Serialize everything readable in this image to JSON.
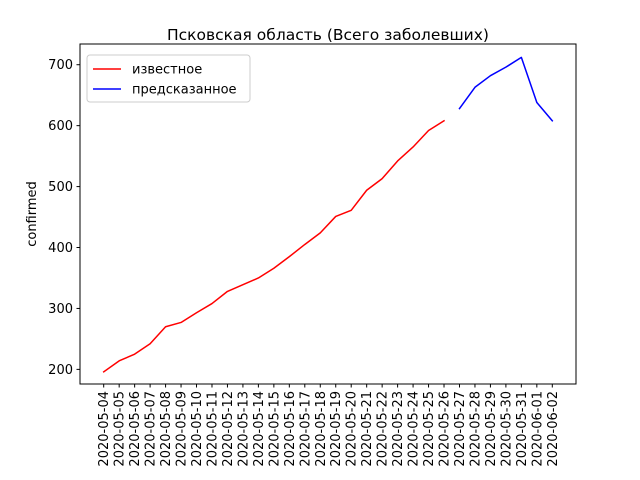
{
  "chart_data": {
    "type": "line",
    "title": "Псковская область (Всего заболевших)",
    "xlabel": "",
    "ylabel": "confirmed",
    "categories": [
      "2020-05-04",
      "2020-05-05",
      "2020-05-06",
      "2020-05-07",
      "2020-05-08",
      "2020-05-09",
      "2020-05-10",
      "2020-05-11",
      "2020-05-12",
      "2020-05-13",
      "2020-05-14",
      "2020-05-15",
      "2020-05-16",
      "2020-05-17",
      "2020-05-18",
      "2020-05-19",
      "2020-05-20",
      "2020-05-21",
      "2020-05-22",
      "2020-05-23",
      "2020-05-24",
      "2020-05-25",
      "2020-05-26",
      "2020-05-27",
      "2020-05-28",
      "2020-05-29",
      "2020-05-30",
      "2020-05-31",
      "2020-06-01",
      "2020-06-02"
    ],
    "ylim": [
      176,
      734
    ],
    "yticks": [
      200,
      300,
      400,
      500,
      600,
      700
    ],
    "grid": false,
    "legend_position": "top-left",
    "series": [
      {
        "name": "известное",
        "color": "#ff0000",
        "points": [
          {
            "x": "2020-05-04",
            "y": 196
          },
          {
            "x": "2020-05-05",
            "y": 214
          },
          {
            "x": "2020-05-06",
            "y": 225
          },
          {
            "x": "2020-05-07",
            "y": 242
          },
          {
            "x": "2020-05-08",
            "y": 270
          },
          {
            "x": "2020-05-09",
            "y": 277
          },
          {
            "x": "2020-05-10",
            "y": 293
          },
          {
            "x": "2020-05-11",
            "y": 308
          },
          {
            "x": "2020-05-12",
            "y": 328
          },
          {
            "x": "2020-05-13",
            "y": 339
          },
          {
            "x": "2020-05-14",
            "y": 350
          },
          {
            "x": "2020-05-15",
            "y": 366
          },
          {
            "x": "2020-05-16",
            "y": 385
          },
          {
            "x": "2020-05-17",
            "y": 405
          },
          {
            "x": "2020-05-18",
            "y": 424
          },
          {
            "x": "2020-05-19",
            "y": 451
          },
          {
            "x": "2020-05-20",
            "y": 461
          },
          {
            "x": "2020-05-21",
            "y": 494
          },
          {
            "x": "2020-05-22",
            "y": 513
          },
          {
            "x": "2020-05-23",
            "y": 542
          },
          {
            "x": "2020-05-24",
            "y": 565
          },
          {
            "x": "2020-05-25",
            "y": 592
          },
          {
            "x": "2020-05-26",
            "y": 608
          }
        ]
      },
      {
        "name": "предсказанное",
        "color": "#0000ff",
        "points": [
          {
            "x": "2020-05-27",
            "y": 628
          },
          {
            "x": "2020-05-28",
            "y": 663
          },
          {
            "x": "2020-05-29",
            "y": 682
          },
          {
            "x": "2020-05-30",
            "y": 696
          },
          {
            "x": "2020-05-31",
            "y": 712
          },
          {
            "x": "2020-06-01",
            "y": 638
          },
          {
            "x": "2020-06-02",
            "y": 608
          }
        ]
      }
    ]
  }
}
